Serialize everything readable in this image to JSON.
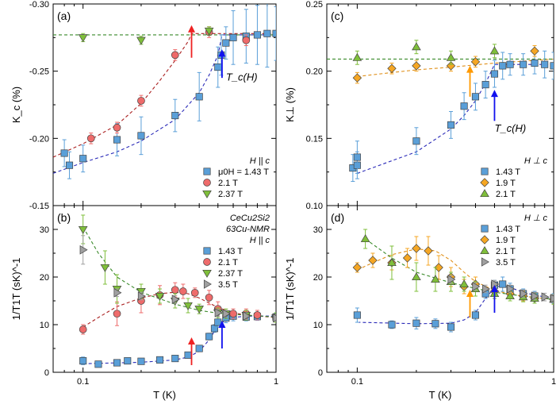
{
  "chart_data": [
    {
      "id": "a",
      "type": "scatter",
      "panel_label": "(a)",
      "xlabel": "",
      "ylabel": "K_c (%)",
      "xscale": "log",
      "xlim": [
        0.07,
        1.0
      ],
      "ylim": [
        -0.15,
        -0.3
      ],
      "yticks": [
        -0.3,
        -0.25,
        -0.2,
        -0.15
      ],
      "ytick_labels": [
        "-0.30",
        "-0.25",
        "-0.20",
        "-0.15"
      ],
      "legend": {
        "placement": "bottom-right",
        "header": "H || c"
      },
      "annotations": [
        {
          "kind": "text",
          "text": "T_c(H)",
          "x": 0.55,
          "y": -0.243
        },
        {
          "kind": "arrow",
          "color": "#ee2222",
          "x": 0.365,
          "y_from": -0.26,
          "y_to": -0.283
        },
        {
          "kind": "arrow",
          "color": "#1111ee",
          "x": 0.525,
          "y_from": -0.245,
          "y_to": -0.265
        }
      ],
      "series": [
        {
          "name": "μ0H = 1.43 T",
          "marker": "square",
          "color": "#5a9fd8",
          "x": [
            0.08,
            0.085,
            0.1,
            0.15,
            0.2,
            0.3,
            0.4,
            0.5,
            0.52,
            0.55,
            0.6,
            0.7,
            0.8,
            0.9,
            1.0
          ],
          "y": [
            -0.189,
            -0.18,
            -0.185,
            -0.199,
            -0.202,
            -0.217,
            -0.231,
            -0.253,
            -0.262,
            -0.271,
            -0.275,
            -0.276,
            -0.277,
            -0.278,
            -0.278
          ],
          "err": [
            0.01,
            0.01,
            0.01,
            0.012,
            0.014,
            0.012,
            0.018,
            0.015,
            0.015,
            0.012,
            0.02,
            0.02,
            0.022,
            0.025,
            0.02
          ]
        },
        {
          "name": "2.1 T",
          "marker": "circle",
          "color": "#ee6b6b",
          "x": [
            0.11,
            0.15,
            0.2,
            0.3,
            0.45,
            0.7
          ],
          "y": [
            -0.2,
            -0.208,
            -0.228,
            -0.262,
            -0.279,
            -0.273
          ],
          "err": [
            0.004,
            0.004,
            0.004,
            0.004,
            0.004,
            0.004
          ]
        },
        {
          "name": "2.37 T",
          "marker": "triangle-down",
          "color": "#7fbf3a",
          "x": [
            0.1,
            0.2,
            0.45
          ],
          "y": [
            -0.275,
            -0.273,
            -0.28
          ],
          "err": [
            0.003,
            0.003,
            0.003
          ]
        }
      ],
      "fits": [
        {
          "color": "#aa2020",
          "x": [
            0.07,
            0.1,
            0.15,
            0.2,
            0.25,
            0.3,
            0.35,
            0.365,
            1.0
          ],
          "y": [
            -0.186,
            -0.196,
            -0.21,
            -0.226,
            -0.243,
            -0.258,
            -0.272,
            -0.278,
            -0.278
          ]
        },
        {
          "color": "#2a2ab8",
          "x": [
            0.07,
            0.1,
            0.15,
            0.2,
            0.3,
            0.4,
            0.45,
            0.5,
            0.525,
            1.0
          ],
          "y": [
            -0.174,
            -0.182,
            -0.19,
            -0.198,
            -0.214,
            -0.234,
            -0.247,
            -0.262,
            -0.277,
            -0.277
          ]
        },
        {
          "color": "#3a8a2a",
          "x": [
            0.07,
            1.0
          ],
          "y": [
            -0.277,
            -0.277
          ]
        }
      ]
    },
    {
      "id": "b",
      "type": "scatter",
      "panel_label": "(b)",
      "xlabel": "T (K)",
      "ylabel": "1/T1T (sK)^-1",
      "xscale": "log",
      "xlim": [
        0.07,
        1.0
      ],
      "ylim": [
        0,
        35
      ],
      "yticks": [
        0,
        10,
        20,
        30
      ],
      "ytick_labels": [
        "0",
        "10",
        "20",
        "30"
      ],
      "xticks": [
        0.1,
        1
      ],
      "xtick_labels": [
        "0.1",
        "1"
      ],
      "legend": {
        "placement": "top-right",
        "header_lines": [
          "CeCu2Si2",
          "63Cu-NMR",
          "H || c"
        ]
      },
      "annotations": [
        {
          "kind": "arrow",
          "color": "#ee2222",
          "x": 0.365,
          "y_from": 1.5,
          "y_to": 7.0
        },
        {
          "kind": "arrow",
          "color": "#1111ee",
          "x": 0.525,
          "y_from": 5.0,
          "y_to": 10.5
        }
      ],
      "series": [
        {
          "name": "1.43 T",
          "marker": "square",
          "color": "#5a9fd8",
          "x": [
            0.1,
            0.12,
            0.15,
            0.17,
            0.2,
            0.25,
            0.3,
            0.35,
            0.4,
            0.45,
            0.48,
            0.5,
            0.55,
            0.6,
            0.7,
            0.8,
            1.0
          ],
          "y": [
            2.4,
            1.7,
            2.0,
            2.4,
            2.3,
            2.6,
            2.9,
            3.6,
            5.0,
            7.5,
            9.2,
            10.5,
            11.4,
            11.8,
            11.6,
            11.7,
            11.6
          ],
          "err": [
            0.8,
            0.3,
            0.3,
            0.3,
            0.3,
            0.3,
            0.3,
            0.5,
            0.5,
            0.7,
            0.8,
            1.0,
            1.0,
            1.0,
            0.8,
            0.8,
            0.8
          ]
        },
        {
          "name": "2.1 T",
          "marker": "circle",
          "color": "#ee6b6b",
          "x": [
            0.1,
            0.15,
            0.2,
            0.25,
            0.3,
            0.33,
            0.38,
            0.45,
            0.5,
            0.6,
            0.7,
            0.8,
            1.0
          ],
          "y": [
            9.0,
            12.3,
            15.0,
            16.2,
            17.3,
            17.0,
            16.7,
            15.7,
            13.3,
            12.3,
            12.3,
            12.0,
            11.5
          ],
          "err": [
            1.0,
            2.5,
            2.5,
            2.0,
            1.5,
            1.5,
            1.0,
            1.5,
            1.5,
            1.0,
            1.0,
            1.0,
            1.0
          ]
        },
        {
          "name": "2.37 T",
          "marker": "triangle-down",
          "color": "#7fbf3a",
          "x": [
            0.1,
            0.13,
            0.15,
            0.2,
            0.25,
            0.3,
            0.35,
            0.4,
            0.5,
            0.55,
            0.7,
            1.0
          ],
          "y": [
            30.0,
            22.0,
            17.5,
            17.0,
            16.0,
            15.0,
            14.0,
            13.3,
            12.5,
            12.3,
            12.0,
            11.5
          ],
          "err": [
            3.0,
            3.5,
            3.0,
            1.5,
            1.5,
            1.5,
            1.5,
            1.0,
            1.0,
            1.0,
            1.0,
            1.0
          ]
        },
        {
          "name": "3.5 T",
          "marker": "triangle-right",
          "color": "#a0a0a0",
          "x": [
            0.1,
            0.15,
            0.2,
            0.3,
            0.5,
            0.55,
            0.7,
            1.0
          ],
          "y": [
            25.7,
            16.7,
            16.0,
            15.3,
            12.5,
            12.3,
            11.8,
            11.4
          ],
          "err": [
            3.0,
            0.8,
            0.8,
            0.8,
            0.7,
            0.7,
            0.7,
            0.7
          ]
        }
      ],
      "fits": [
        {
          "color": "#aa2020",
          "x": [
            0.1,
            0.12,
            0.15,
            0.2,
            0.25,
            0.3,
            0.35,
            0.4,
            0.5,
            0.6,
            0.7,
            1.0
          ],
          "y": [
            9.5,
            11.5,
            13.8,
            15.6,
            16.5,
            16.8,
            16.5,
            15.6,
            13.6,
            12.5,
            12.0,
            11.5
          ]
        },
        {
          "color": "#2a2ab8",
          "x": [
            0.1,
            0.2,
            0.3,
            0.35,
            0.4,
            0.45,
            0.5,
            0.55,
            0.6,
            0.7,
            1.0
          ],
          "y": [
            1.8,
            2.1,
            2.6,
            3.2,
            4.4,
            6.8,
            9.8,
            11.0,
            11.5,
            11.8,
            11.8
          ]
        },
        {
          "color": "#3a8a2a",
          "x": [
            0.1,
            0.12,
            0.15,
            0.2,
            0.3,
            0.4,
            0.5,
            0.7,
            1.0
          ],
          "y": [
            30.5,
            25.0,
            20.0,
            16.8,
            14.3,
            13.0,
            12.4,
            12.0,
            11.6
          ]
        }
      ]
    },
    {
      "id": "c",
      "type": "scatter",
      "panel_label": "(c)",
      "xlabel": "",
      "ylabel": "K⊥ (%)",
      "xscale": "log",
      "xlim": [
        0.07,
        1.0
      ],
      "ylim": [
        0.1,
        0.25
      ],
      "yticks": [
        0.1,
        0.15,
        0.2,
        0.25
      ],
      "ytick_labels": [
        "0.10",
        "0.15",
        "0.20",
        "0.25"
      ],
      "legend": {
        "placement": "bottom-right",
        "header": "H ⊥ c"
      },
      "annotations": [
        {
          "kind": "text",
          "text": "T_c(H)",
          "x": 0.5,
          "y": 0.155
        },
        {
          "kind": "arrow",
          "color": "#ff9900",
          "x": 0.375,
          "y_from": 0.181,
          "y_to": 0.203
        },
        {
          "kind": "arrow",
          "color": "#1111ee",
          "x": 0.5,
          "y_from": 0.163,
          "y_to": 0.185
        }
      ],
      "series": [
        {
          "name": "1.43 T",
          "marker": "square",
          "color": "#5a9fd8",
          "x": [
            0.095,
            0.1,
            0.1,
            0.2,
            0.3,
            0.35,
            0.4,
            0.45,
            0.5,
            0.55,
            0.6,
            0.7,
            0.8,
            0.9,
            1.0
          ],
          "y": [
            0.128,
            0.13,
            0.136,
            0.148,
            0.16,
            0.174,
            0.181,
            0.19,
            0.198,
            0.204,
            0.205,
            0.205,
            0.206,
            0.205,
            0.204
          ],
          "err": [
            0.01,
            0.01,
            0.012,
            0.01,
            0.01,
            0.01,
            0.01,
            0.01,
            0.01,
            0.01,
            0.008,
            0.008,
            0.008,
            0.01,
            0.01
          ]
        },
        {
          "name": "1.9 T",
          "marker": "diamond",
          "color": "#f5a623",
          "x": [
            0.1,
            0.15,
            0.2,
            0.3,
            0.4,
            0.8
          ],
          "y": [
            0.195,
            0.202,
            0.204,
            0.204,
            0.207,
            0.215
          ],
          "err": [
            0.004,
            0.004,
            0.004,
            0.004,
            0.004,
            0.004
          ]
        },
        {
          "name": "2.1 T",
          "marker": "triangle-up",
          "color": "#7fbf3a",
          "x": [
            0.1,
            0.2,
            0.3,
            0.5
          ],
          "y": [
            0.21,
            0.218,
            0.21,
            0.215
          ],
          "err": [
            0.005,
            0.005,
            0.005,
            0.005
          ]
        }
      ],
      "fits": [
        {
          "color": "#e0901a",
          "x": [
            0.1,
            0.15,
            0.2,
            0.3,
            0.5,
            1.0
          ],
          "y": [
            0.196,
            0.199,
            0.201,
            0.203,
            0.206,
            0.209
          ]
        },
        {
          "color": "#2a2ab8",
          "x": [
            0.1,
            0.2,
            0.3,
            0.35,
            0.4,
            0.45,
            0.5,
            1.0
          ],
          "y": [
            0.124,
            0.14,
            0.157,
            0.167,
            0.178,
            0.191,
            0.205,
            0.205
          ]
        },
        {
          "color": "#3a8a2a",
          "x": [
            0.07,
            1.0
          ],
          "y": [
            0.209,
            0.209
          ]
        }
      ]
    },
    {
      "id": "d",
      "type": "scatter",
      "panel_label": "(d)",
      "xlabel": "T (K)",
      "ylabel": "1/T1T (sK)^-1",
      "xscale": "log",
      "xlim": [
        0.07,
        1.0
      ],
      "ylim": [
        0,
        35
      ],
      "yticks": [
        0,
        10,
        20,
        30
      ],
      "ytick_labels": [
        "0",
        "10",
        "20",
        "30"
      ],
      "xticks": [
        0.1,
        1
      ],
      "xtick_labels": [
        "0.1",
        "1"
      ],
      "legend": {
        "placement": "top-right",
        "header": "H ⊥ c"
      },
      "annotations": [
        {
          "kind": "arrow",
          "color": "#ff9900",
          "x": 0.375,
          "y_from": 11.5,
          "y_to": 17.0
        },
        {
          "kind": "arrow",
          "color": "#1111ee",
          "x": 0.5,
          "y_from": 12.5,
          "y_to": 18.0
        }
      ],
      "series": [
        {
          "name": "1.43 T",
          "marker": "square",
          "color": "#5a9fd8",
          "x": [
            0.1,
            0.15,
            0.2,
            0.25,
            0.3,
            0.4,
            0.45,
            0.5,
            0.55,
            0.6,
            0.7,
            0.8,
            1.0
          ],
          "y": [
            12.0,
            10.0,
            10.3,
            10.2,
            9.5,
            12.0,
            16.5,
            18.3,
            18.5,
            17.5,
            16.5,
            16.0,
            15.5
          ],
          "err": [
            1.5,
            0.8,
            1.2,
            1.0,
            1.0,
            1.0,
            1.0,
            1.0,
            1.5,
            1.2,
            1.0,
            1.0,
            1.0
          ]
        },
        {
          "name": "1.9 T",
          "marker": "diamond",
          "color": "#f5a623",
          "x": [
            0.1,
            0.12,
            0.15,
            0.18,
            0.2,
            0.23,
            0.26,
            0.3,
            0.35,
            0.4,
            0.5,
            0.6,
            0.7,
            0.8,
            1.0
          ],
          "y": [
            22.0,
            23.5,
            23.0,
            24.0,
            26.0,
            25.5,
            22.0,
            20.0,
            18.0,
            18.5,
            17.0,
            16.5,
            16.0,
            15.5,
            15.3
          ],
          "err": [
            1.0,
            1.5,
            1.5,
            2.0,
            2.5,
            3.0,
            2.5,
            2.0,
            1.5,
            1.5,
            1.0,
            1.0,
            1.0,
            1.0,
            1.0
          ]
        },
        {
          "name": "2.1 T",
          "marker": "triangle-up",
          "color": "#7fbf3a",
          "x": [
            0.11,
            0.15,
            0.2,
            0.25,
            0.3,
            0.35,
            0.4,
            0.5,
            0.6,
            0.7,
            0.8,
            1.0
          ],
          "y": [
            28.0,
            23.0,
            20.0,
            19.5,
            19.0,
            18.5,
            17.5,
            16.5,
            16.0,
            15.8,
            15.5,
            15.3
          ],
          "err": [
            2.0,
            3.5,
            3.0,
            2.5,
            2.0,
            1.5,
            1.5,
            1.0,
            1.0,
            1.0,
            1.0,
            1.0
          ]
        },
        {
          "name": "3.5 T",
          "marker": "triangle-right",
          "color": "#a0a0a0",
          "x": [
            0.3,
            0.4,
            0.45,
            0.5,
            0.6,
            0.7,
            0.8,
            0.9,
            1.0
          ],
          "y": [
            19.5,
            18.0,
            17.5,
            18.5,
            17.5,
            16.5,
            16.0,
            15.8,
            15.5
          ],
          "err": [
            0.8,
            0.8,
            0.8,
            0.8,
            0.8,
            0.8,
            0.8,
            0.8,
            0.8
          ]
        }
      ],
      "fits": [
        {
          "color": "#e0901a",
          "x": [
            0.1,
            0.12,
            0.15,
            0.2,
            0.25,
            0.3,
            0.35,
            0.4,
            0.5,
            0.6,
            0.7,
            0.8,
            1.0
          ],
          "y": [
            21.5,
            23.0,
            24.7,
            25.9,
            25.5,
            23.5,
            21.0,
            19.0,
            17.2,
            16.4,
            16.0,
            15.7,
            15.3
          ]
        },
        {
          "color": "#2a2ab8",
          "x": [
            0.1,
            0.2,
            0.3,
            0.35,
            0.4,
            0.45,
            0.5,
            0.55,
            0.6,
            0.7,
            0.8,
            1.0
          ],
          "y": [
            10.5,
            10.2,
            10.3,
            11.0,
            12.5,
            15.5,
            17.8,
            18.3,
            17.8,
            16.8,
            16.2,
            15.5
          ]
        },
        {
          "color": "#3a8a2a",
          "x": [
            0.11,
            0.15,
            0.2,
            0.3,
            0.4,
            0.5,
            0.7,
            1.0
          ],
          "y": [
            28.0,
            24.0,
            21.0,
            18.8,
            17.6,
            16.8,
            16.0,
            15.3
          ]
        }
      ]
    }
  ]
}
